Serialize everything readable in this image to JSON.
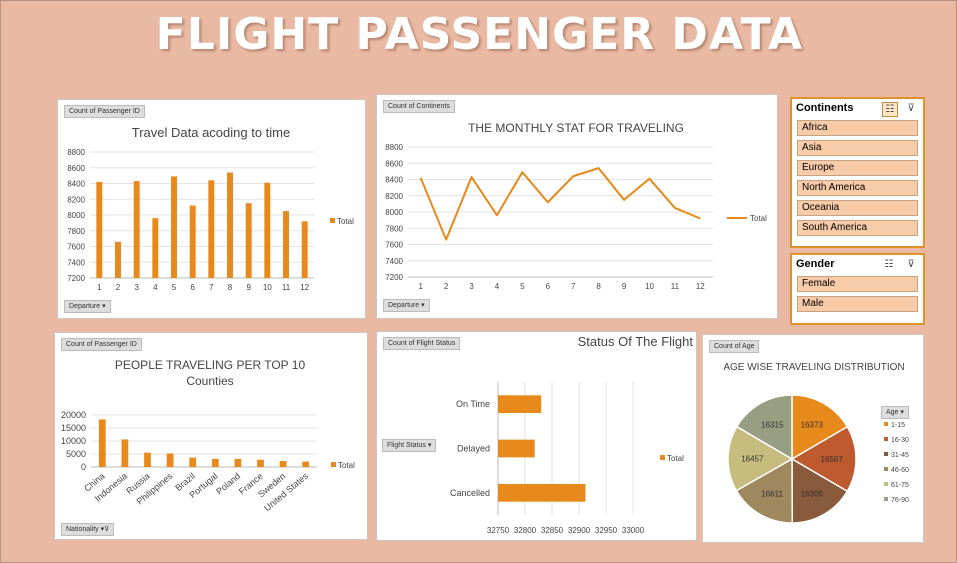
{
  "page": {
    "title": "FLIGHT PASSENGER DATA"
  },
  "colors": {
    "accent": "#e8891c",
    "background": "#e9b9a3",
    "slicer_item": "#f8cba9"
  },
  "charts": {
    "travel_time": {
      "tag": "Count of Passenger ID",
      "filter": "Departure",
      "chart_data": {
        "type": "bar",
        "title": "Travel Data acoding to time",
        "categories": [
          "1",
          "2",
          "3",
          "4",
          "5",
          "6",
          "7",
          "8",
          "9",
          "10",
          "11",
          "12"
        ],
        "values": [
          8420,
          7660,
          8430,
          7960,
          8490,
          8120,
          8440,
          8540,
          8150,
          8410,
          8050,
          7920
        ],
        "ylim": [
          7200,
          8800
        ],
        "yticks": [
          "7200",
          "7400",
          "7600",
          "7800",
          "8000",
          "8200",
          "8400",
          "8600",
          "8800"
        ],
        "legend": "Total",
        "legend_position": "right"
      }
    },
    "monthly_stat": {
      "tag": "Count of Continents",
      "filter": "Departure",
      "chart_data": {
        "type": "line",
        "title": "THE MONTHLY STAT FOR TRAVELING",
        "categories": [
          "1",
          "2",
          "3",
          "4",
          "5",
          "6",
          "7",
          "8",
          "9",
          "10",
          "11",
          "12"
        ],
        "values": [
          8420,
          7660,
          8430,
          7960,
          8490,
          8120,
          8440,
          8540,
          8150,
          8410,
          8050,
          7920
        ],
        "ylim": [
          7200,
          8800
        ],
        "yticks": [
          "7200",
          "7400",
          "7600",
          "7800",
          "8000",
          "8200",
          "8400",
          "8600",
          "8800"
        ],
        "legend": "Total",
        "legend_position": "right"
      }
    },
    "countries": {
      "tag": "Count of Passenger ID",
      "filter": "Nationality",
      "chart_data": {
        "type": "bar",
        "title_line1": "PEOPLE TRAVELING PER TOP 10",
        "title_line2": "Counties",
        "categories": [
          "China",
          "Indonesia",
          "Russia",
          "Philippines",
          "Brazil",
          "Portugal",
          "Poland",
          "France",
          "Sweden",
          "United States"
        ],
        "values": [
          18300,
          10600,
          5500,
          5200,
          3600,
          3100,
          3100,
          2800,
          2300,
          2100
        ],
        "ylim": [
          0,
          20000
        ],
        "yticks": [
          "0",
          "5000",
          "10000",
          "15000",
          "20000"
        ],
        "legend": "Total",
        "legend_position": "right"
      }
    },
    "flight_status": {
      "tag": "Count of Flight Status",
      "filter": "Flight Status",
      "chart_data": {
        "type": "bar",
        "orientation": "horizontal",
        "title": "Status Of The Flight",
        "categories": [
          "On Time",
          "Delayed",
          "Cancelled"
        ],
        "values": [
          32830,
          32818,
          32912
        ],
        "xlim": [
          32750,
          33000
        ],
        "xticks": [
          "32750",
          "32800",
          "32850",
          "32900",
          "32950",
          "33000"
        ],
        "legend": "Total",
        "legend_position": "right"
      }
    },
    "age": {
      "tag": "Count of Age",
      "legend_title": "Age",
      "chart_data": {
        "type": "pie",
        "title": "AGE WISE TRAVELING DISTRIBUTION",
        "labels": [
          "1-15",
          "16-30",
          "31-45",
          "46-60",
          "61-75",
          "76-90"
        ],
        "values": [
          16373,
          16567,
          16306,
          16611,
          16457,
          16315
        ],
        "colors": [
          "#e8891c",
          "#bd5a2e",
          "#8a5a3c",
          "#9f875e",
          "#c5bc7d",
          "#979e82"
        ],
        "legend_position": "right"
      }
    }
  },
  "slicers": {
    "continents": {
      "title": "Continents",
      "items": [
        "Africa",
        "Asia",
        "Europe",
        "North America",
        "Oceania",
        "South America"
      ]
    },
    "gender": {
      "title": "Gender",
      "items": [
        "Female",
        "Male"
      ]
    }
  }
}
